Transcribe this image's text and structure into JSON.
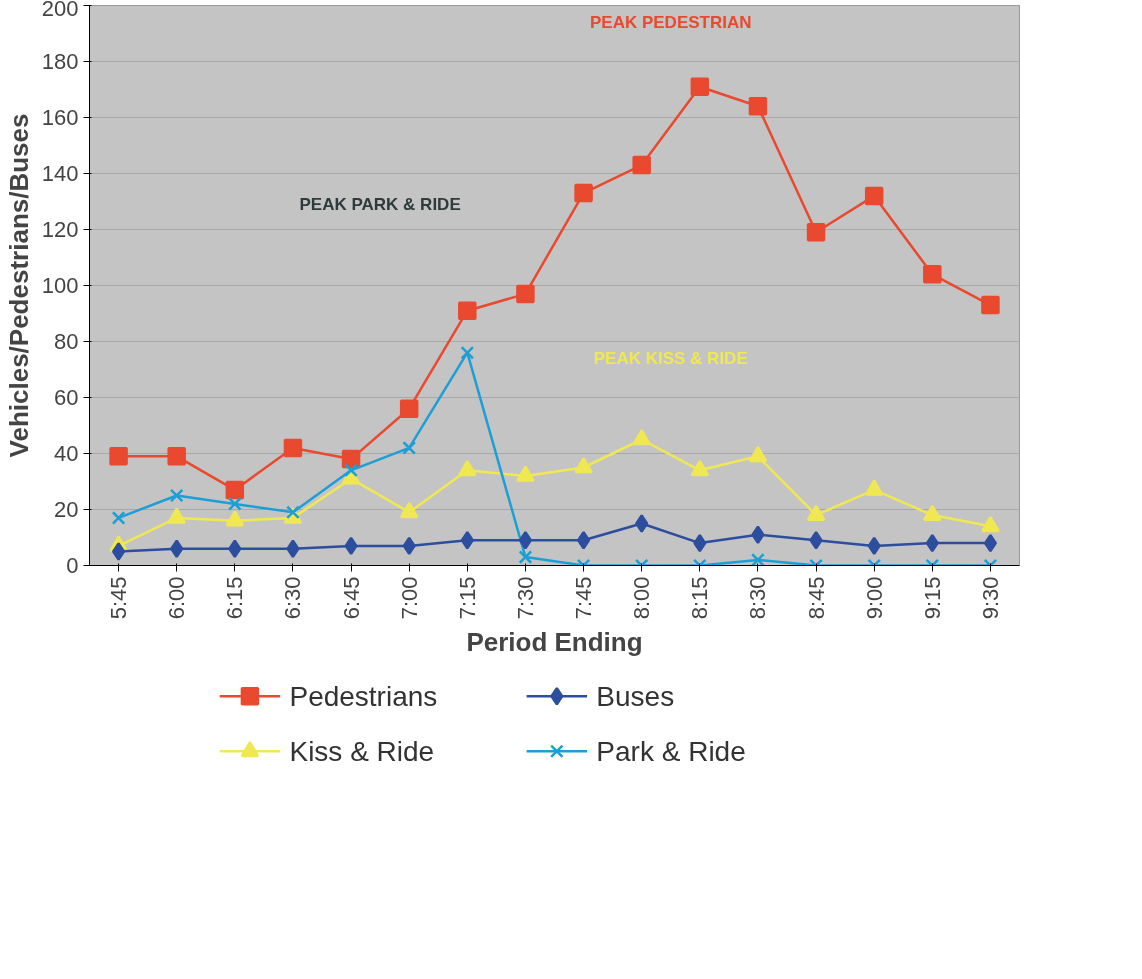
{
  "chart_data": {
    "type": "line",
    "xlabel": "Period Ending",
    "ylabel": "Vehicles/Pedestrians/Buses",
    "categories": [
      "5:45",
      "6:00",
      "6:15",
      "6:30",
      "6:45",
      "7:00",
      "7:15",
      "7:30",
      "7:45",
      "8:00",
      "8:15",
      "8:30",
      "8:45",
      "9:00",
      "9:15",
      "9:30"
    ],
    "series": [
      {
        "name": "Pedestrians",
        "color": "#e8492f",
        "marker": "square",
        "values": [
          39,
          39,
          27,
          42,
          38,
          56,
          91,
          97,
          133,
          143,
          171,
          164,
          119,
          132,
          104,
          93
        ]
      },
      {
        "name": "Buses",
        "color": "#2d4e9e",
        "marker": "diamond",
        "values": [
          5,
          6,
          6,
          6,
          7,
          7,
          9,
          9,
          9,
          15,
          8,
          11,
          9,
          7,
          8,
          8
        ]
      },
      {
        "name": "Kiss & Ride",
        "color": "#f0e852",
        "marker": "triangle",
        "values": [
          7,
          17,
          16,
          17,
          31,
          19,
          34,
          32,
          35,
          45,
          34,
          39,
          18,
          27,
          18,
          14
        ]
      },
      {
        "name": "Park & Ride",
        "color": "#1d9fd6",
        "marker": "cross",
        "values": [
          17,
          25,
          22,
          19,
          34,
          42,
          76,
          3,
          0,
          0,
          0,
          2,
          0,
          0,
          0,
          0
        ]
      }
    ],
    "annotations": [
      "PEAK PEDESTRIAN",
      "PEAK PARK & RIDE",
      "PEAK KISS & RIDE"
    ],
    "ylim": [
      0,
      200
    ],
    "yticks": [
      0,
      20,
      40,
      60,
      80,
      100,
      120,
      140,
      160,
      180,
      200
    ],
    "grid": "y",
    "legend": "bottom"
  }
}
